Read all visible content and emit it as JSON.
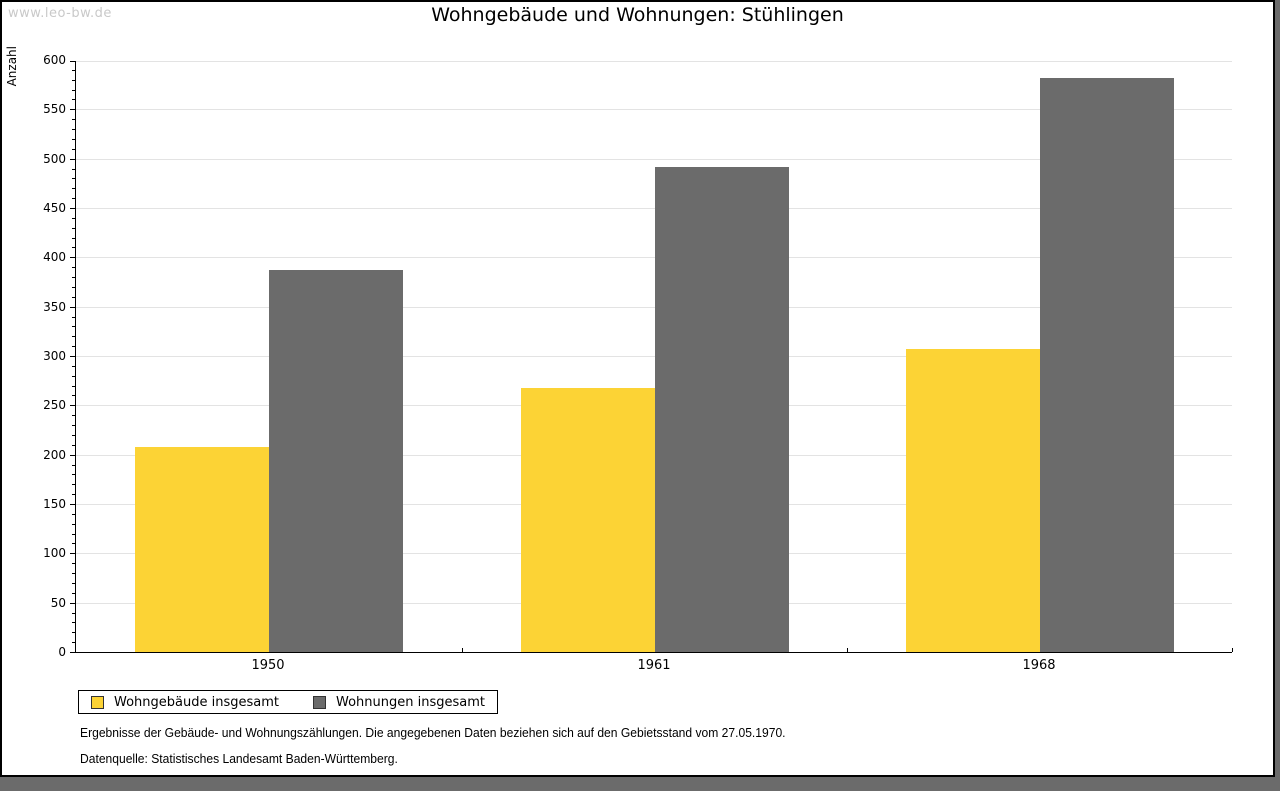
{
  "watermark": "www.leo-bw.de",
  "title": "Wohngebäude und Wohnungen: Stühlingen",
  "chart_data": {
    "type": "bar",
    "title": "Wohngebäude und Wohnungen: Stühlingen",
    "categories": [
      "1950",
      "1961",
      "1968"
    ],
    "series": [
      {
        "name": "Wohngebäude insgesamt",
        "color": "#FCD335",
        "values": [
          208,
          268,
          307
        ]
      },
      {
        "name": "Wohnungen insgesamt",
        "color": "#6B6B6B",
        "values": [
          387,
          492,
          582
        ]
      }
    ],
    "xlabel": "",
    "ylabel": "Anzahl",
    "ylim": [
      0,
      600
    ],
    "ytick_step": 50,
    "ytick_minor_step": 10,
    "grid": true,
    "legend_position": "bottom-left",
    "colors": {
      "grid": "#e3e3e3",
      "axis": "#000000"
    }
  },
  "footer": {
    "line1": "Ergebnisse der Gebäude- und Wohnungszählungen. Die angegebenen Daten beziehen sich auf den Gebietsstand vom 27.05.1970.",
    "line2": "Datenquelle: Statistisches Landesamt Baden-Württemberg."
  }
}
